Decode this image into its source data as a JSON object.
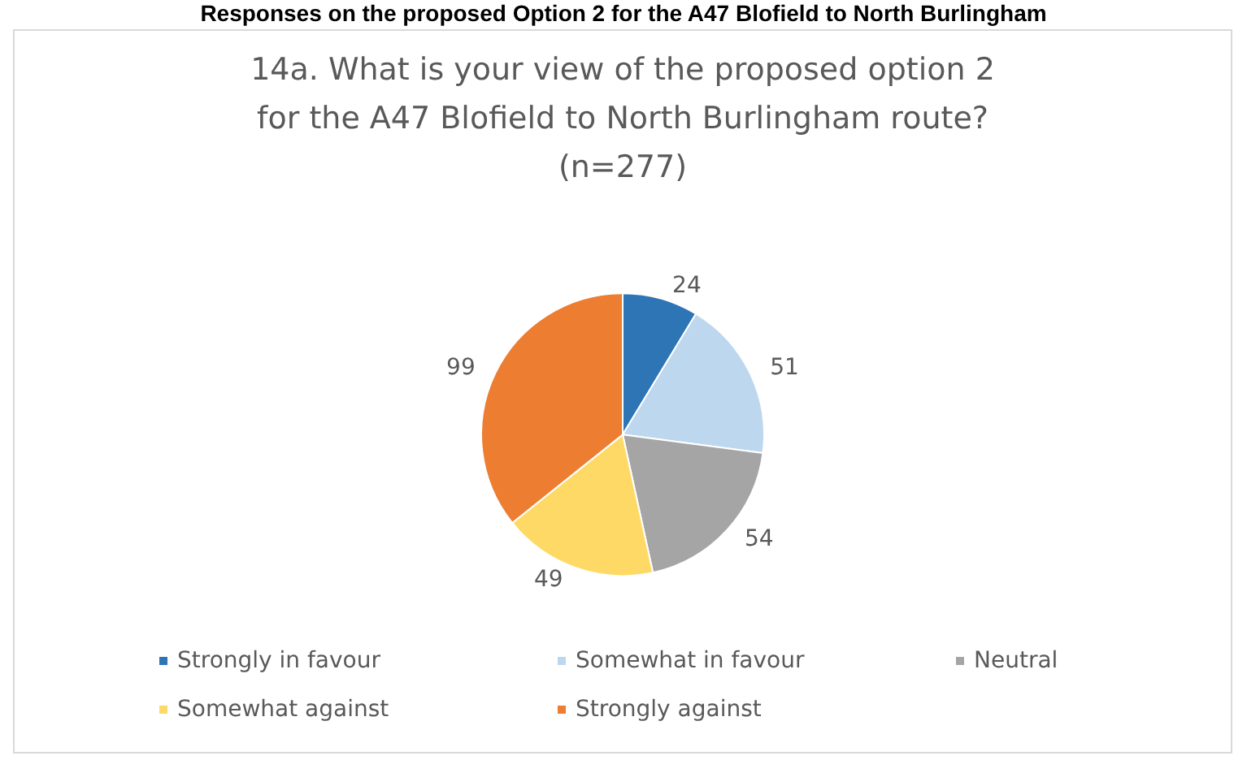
{
  "chart_data": {
    "type": "pie",
    "title": "Responses on the proposed Option 2 for the A47 Blofield to North Burlingham",
    "subtitle": "14a. What is your view of the proposed option 2\nfor the A47 Blofield to North Burlingham route?\n(n=277)",
    "categories": [
      "Strongly in favour",
      "Somewhat in favour",
      "Neutral",
      "Somewhat against",
      "Strongly against"
    ],
    "values": [
      24,
      51,
      54,
      49,
      99
    ],
    "colors": [
      "#2e75b6",
      "#bdd7ee",
      "#a5a5a5",
      "#ffd966",
      "#ed7d31"
    ],
    "data_labels": true,
    "legend": "bottom"
  }
}
